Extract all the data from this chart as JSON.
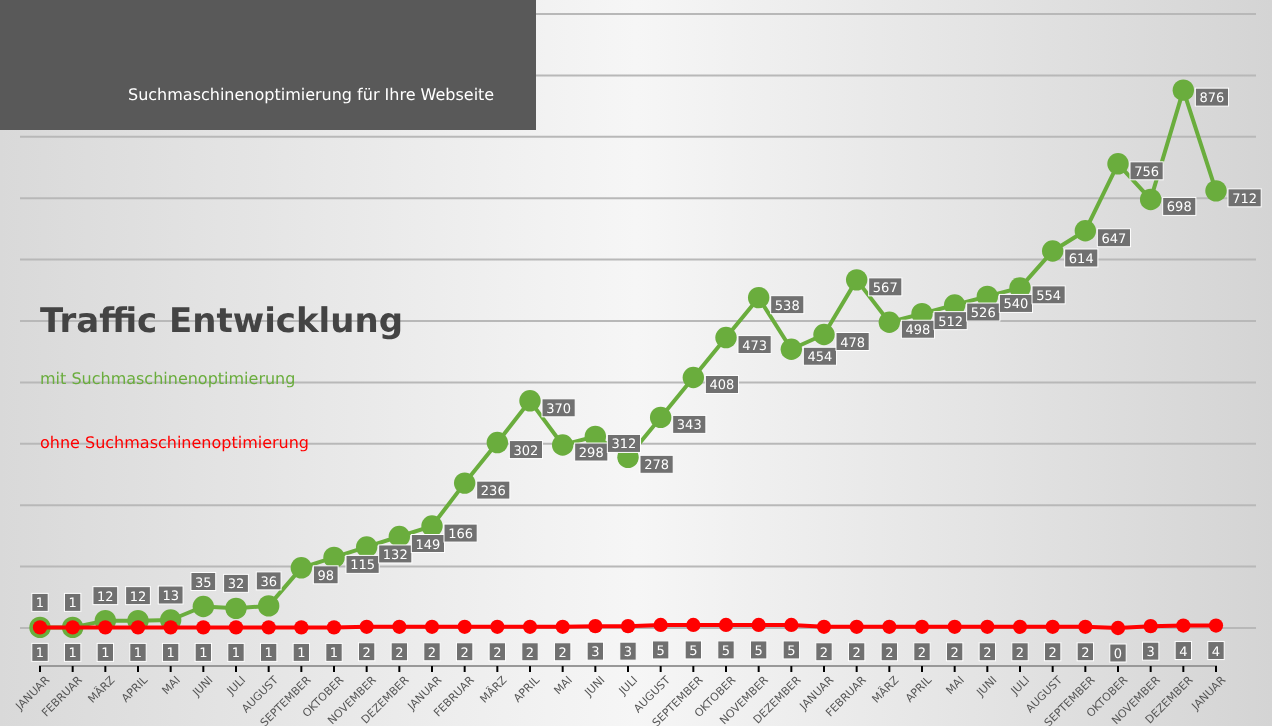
{
  "chart_data": {
    "type": "line",
    "title": "Traffic Entwicklung",
    "subtitle": "Suchmaschinenoptimierung für Ihre Webseite",
    "categories": [
      "JANUAR",
      "FEBRUAR",
      "MÄRZ",
      "APRIL",
      "MAI",
      "JUNI",
      "JULI",
      "AUGUST",
      "SEPTEMBER",
      "OKTOBER",
      "NOVEMBER",
      "DEZEMBER",
      "JANUAR",
      "FEBRUAR",
      "MÄRZ",
      "APRIL",
      "MAI",
      "JUNI",
      "JULI",
      "AUGUST",
      "SEPTEMBER",
      "OKTOBER",
      "NOVEMBER",
      "DEZEMBER",
      "JANUAR",
      "FEBRUAR",
      "MÄRZ",
      "APRIL",
      "MAI",
      "JUNI",
      "JULI",
      "AUGUST",
      "SEPTEMBER",
      "OKTOBER",
      "NOVEMBER",
      "DEZEMBER",
      "JANUAR"
    ],
    "series": [
      {
        "name": "mit Suchmaschinenoptimierung",
        "color": "#6aad3d",
        "values": [
          1,
          1,
          12,
          12,
          13,
          35,
          32,
          36,
          98,
          115,
          132,
          149,
          166,
          236,
          302,
          370,
          298,
          312,
          278,
          343,
          408,
          473,
          538,
          454,
          478,
          567,
          498,
          512,
          526,
          540,
          554,
          614,
          647,
          756,
          698,
          876,
          712
        ]
      },
      {
        "name": "ohne Suchmaschinenoptimierung",
        "color": "#ff0000",
        "values": [
          1,
          1,
          1,
          1,
          1,
          1,
          1,
          1,
          1,
          1,
          2,
          2,
          2,
          2,
          2,
          2,
          2,
          3,
          3,
          5,
          5,
          5,
          5,
          5,
          2,
          2,
          2,
          2,
          2,
          2,
          2,
          2,
          2,
          0,
          3,
          4,
          4
        ]
      }
    ],
    "ylim": [
      0,
      1000
    ],
    "yticks": [
      {
        "value": 0,
        "label": null
      },
      {
        "value": 100,
        "label": null
      },
      {
        "value": 200,
        "label": null
      },
      {
        "value": 300,
        "label": null
      },
      {
        "value": 400,
        "label": null
      },
      {
        "value": 500,
        "label": null
      },
      {
        "value": 600,
        "label": null
      },
      {
        "value": 700,
        "label": null
      },
      {
        "value": 800,
        "label": null
      },
      {
        "value": 900,
        "label": null
      },
      {
        "value": 1000,
        "label": null
      }
    ],
    "grid": "y",
    "legend": "left",
    "marker": "circle",
    "line_style": "solid",
    "data_labels": true
  }
}
